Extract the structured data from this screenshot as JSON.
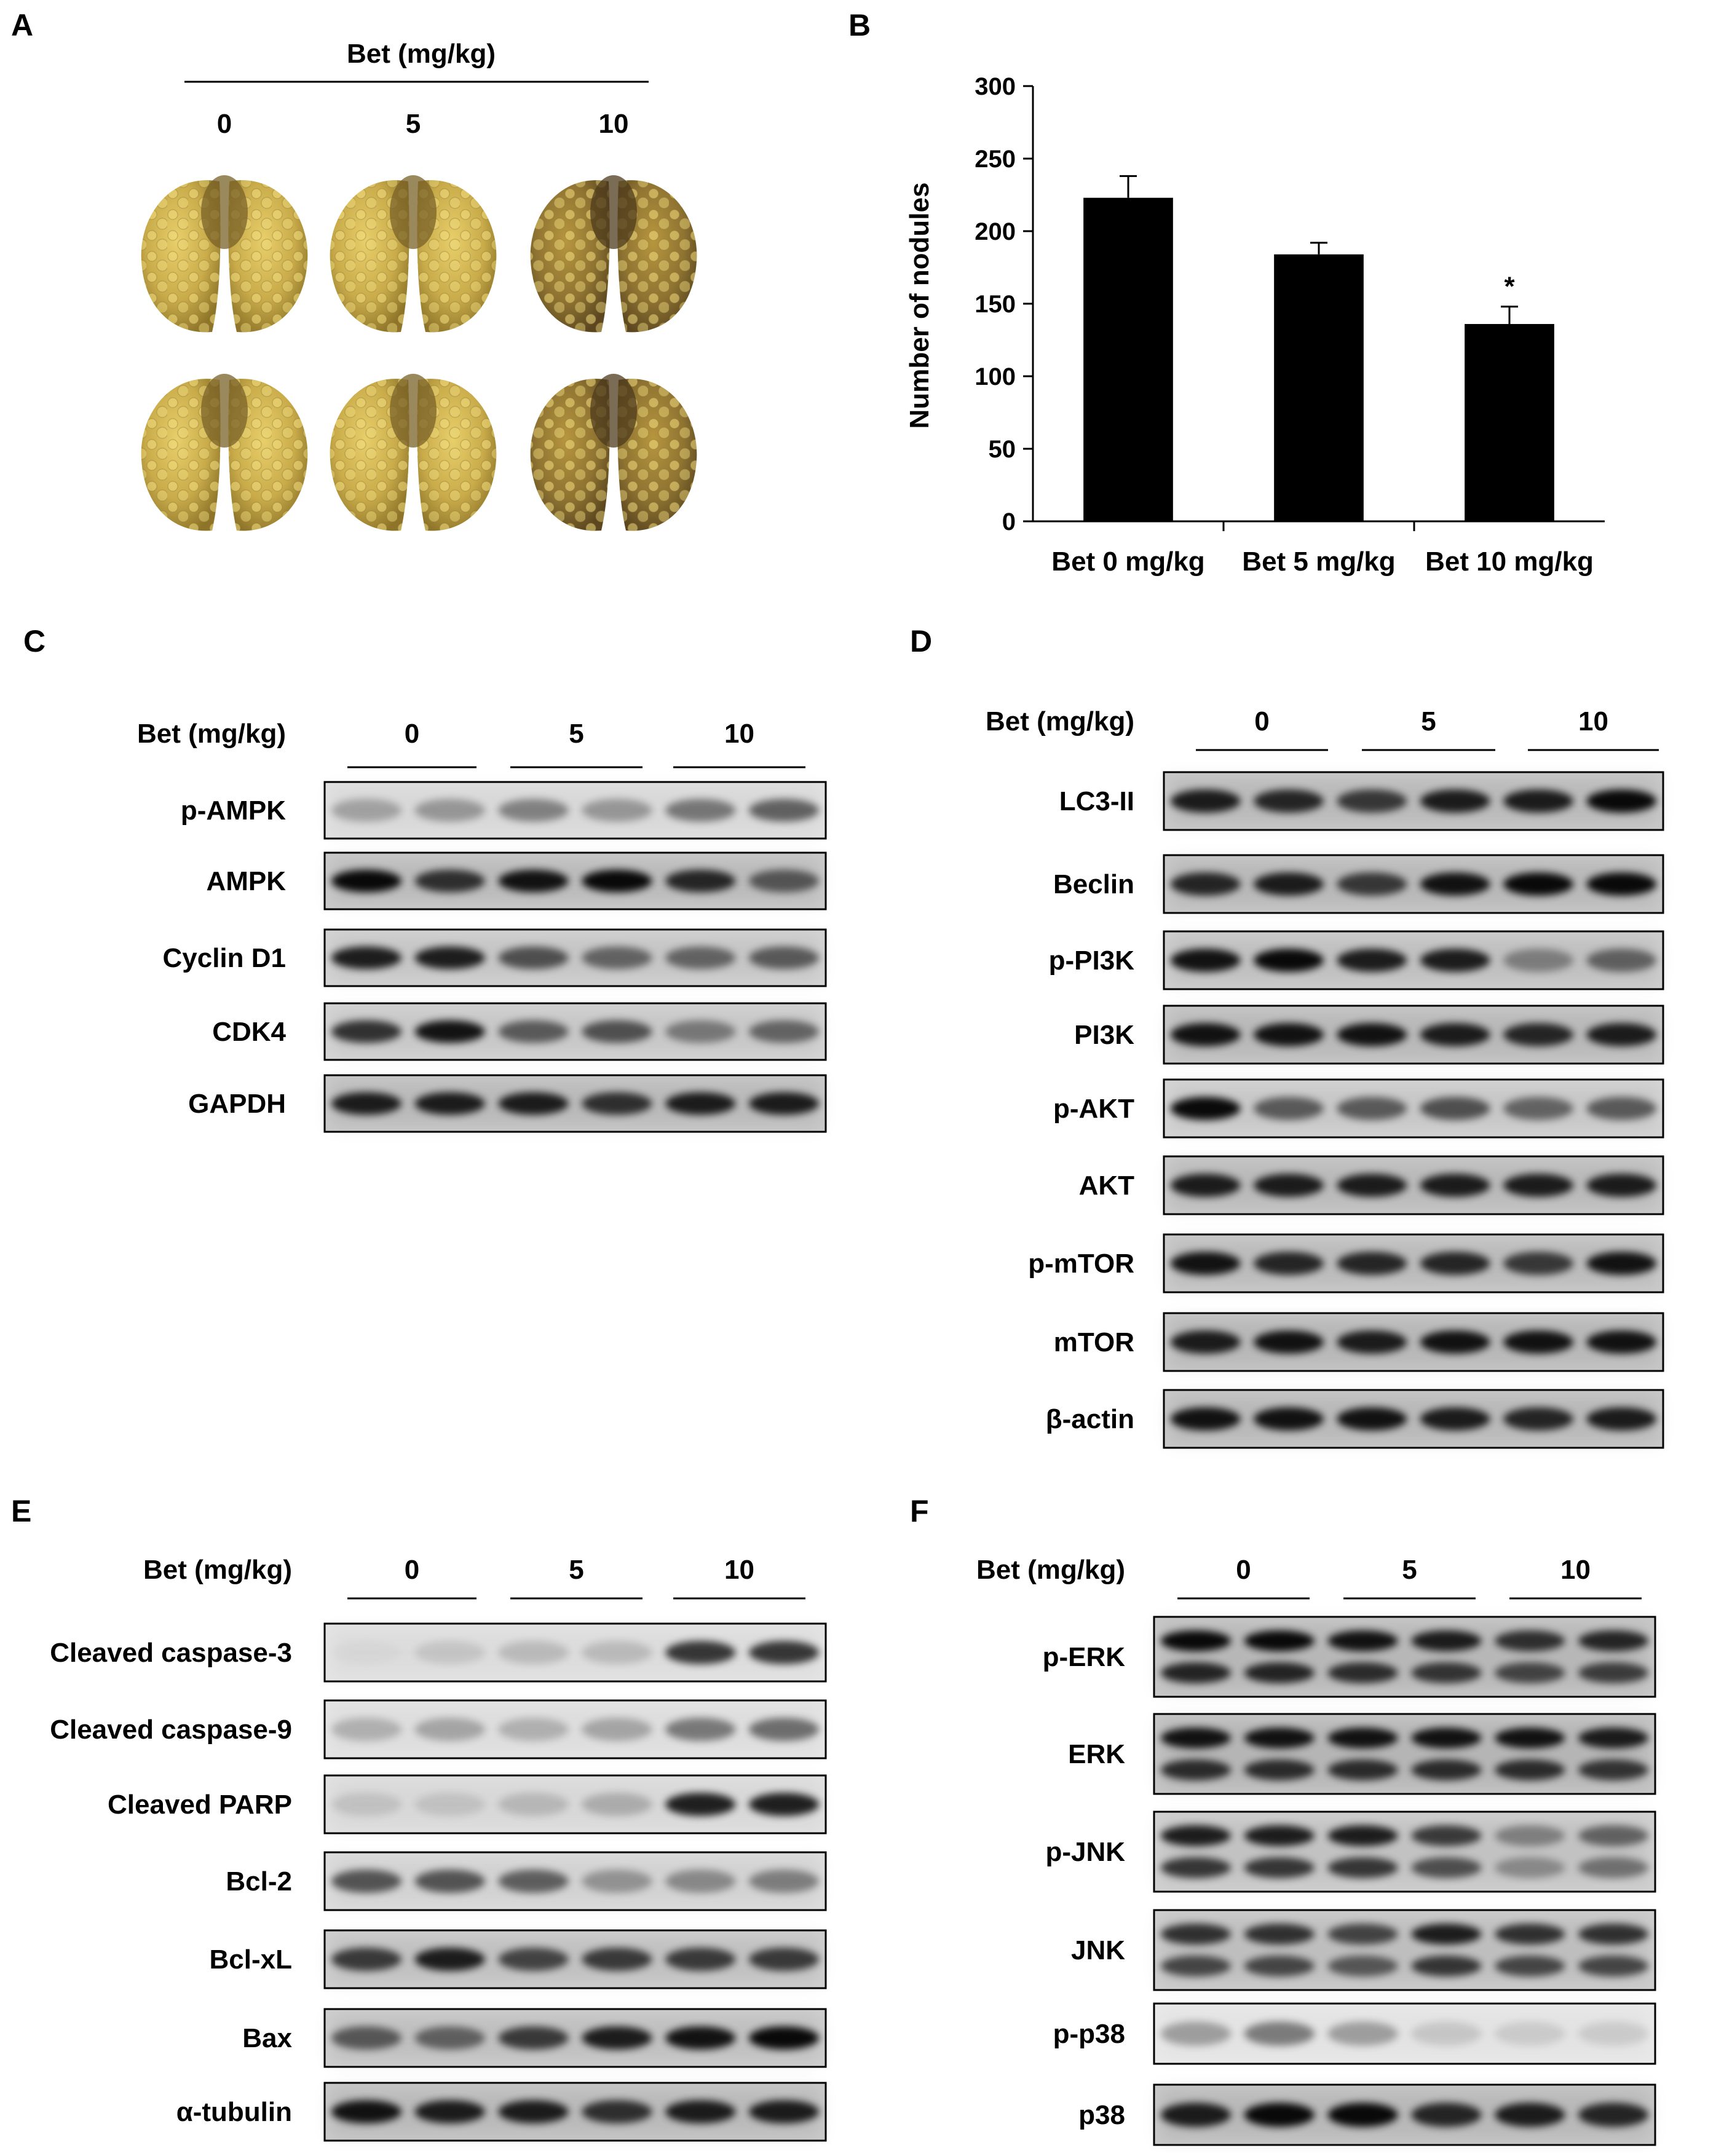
{
  "panels": {
    "A": {
      "letter": "A",
      "header": "Bet (mg/kg)",
      "doses": [
        "0",
        "5",
        "10"
      ],
      "lung_color": "#c9ab4a"
    },
    "B": {
      "letter": "B",
      "chart_data": {
        "type": "bar",
        "categories": [
          "Bet 0 mg/kg",
          "Bet 5 mg/kg",
          "Bet 10 mg/kg"
        ],
        "values": [
          223,
          184,
          136
        ],
        "errors": [
          15,
          8,
          12
        ],
        "significance": [
          "",
          "",
          "*"
        ],
        "ylabel": "Number of nodules",
        "ylim": [
          0,
          300
        ],
        "yticks": [
          "0",
          "50",
          "100",
          "150",
          "200",
          "250",
          "300"
        ],
        "bar_color": "#000000",
        "grid": false
      }
    },
    "C": {
      "letter": "C",
      "header": "Bet (mg/kg)",
      "doses": [
        "0",
        "5",
        "10"
      ],
      "blots": [
        {
          "label": "p-AMPK",
          "intensity": [
            0.25,
            0.3,
            0.4,
            0.3,
            0.45,
            0.55
          ]
        },
        {
          "label": "AMPK",
          "intensity": [
            0.95,
            0.75,
            0.9,
            0.95,
            0.8,
            0.55
          ]
        },
        {
          "label": "Cyclin D1",
          "intensity": [
            0.85,
            0.85,
            0.6,
            0.5,
            0.5,
            0.55
          ]
        },
        {
          "label": "CDK4",
          "intensity": [
            0.75,
            0.9,
            0.55,
            0.6,
            0.4,
            0.5
          ]
        },
        {
          "label": "GAPDH",
          "intensity": [
            0.85,
            0.85,
            0.85,
            0.75,
            0.85,
            0.85
          ]
        }
      ]
    },
    "D": {
      "letter": "D",
      "header": "Bet (mg/kg)",
      "doses": [
        "0",
        "5",
        "10"
      ],
      "blots": [
        {
          "label": "LC3-II",
          "intensity": [
            0.85,
            0.8,
            0.7,
            0.85,
            0.85,
            0.95
          ]
        },
        {
          "label": "Beclin",
          "intensity": [
            0.8,
            0.85,
            0.7,
            0.9,
            0.95,
            0.95
          ]
        },
        {
          "label": "p-PI3K",
          "intensity": [
            0.9,
            0.95,
            0.85,
            0.85,
            0.35,
            0.5
          ]
        },
        {
          "label": "PI3K",
          "intensity": [
            0.9,
            0.9,
            0.9,
            0.85,
            0.8,
            0.85
          ]
        },
        {
          "label": "p-AKT",
          "intensity": [
            0.95,
            0.55,
            0.55,
            0.6,
            0.5,
            0.55
          ]
        },
        {
          "label": "AKT",
          "intensity": [
            0.85,
            0.85,
            0.85,
            0.85,
            0.85,
            0.85
          ]
        },
        {
          "label": "p-mTOR",
          "intensity": [
            0.9,
            0.8,
            0.8,
            0.8,
            0.7,
            0.9
          ]
        },
        {
          "label": "mTOR",
          "intensity": [
            0.85,
            0.9,
            0.85,
            0.9,
            0.9,
            0.9
          ]
        },
        {
          "label": "β-actin",
          "intensity": [
            0.9,
            0.9,
            0.9,
            0.85,
            0.8,
            0.85
          ]
        }
      ]
    },
    "E": {
      "letter": "E",
      "header": "Bet (mg/kg)",
      "doses": [
        "0",
        "5",
        "10"
      ],
      "blots": [
        {
          "label": "Cleaved caspase-3",
          "intensity": [
            0.02,
            0.1,
            0.15,
            0.15,
            0.75,
            0.75
          ]
        },
        {
          "label": "Cleaved caspase-9",
          "intensity": [
            0.2,
            0.25,
            0.2,
            0.25,
            0.45,
            0.5
          ]
        },
        {
          "label": "Cleaved PARP",
          "intensity": [
            0.1,
            0.1,
            0.15,
            0.2,
            0.85,
            0.85
          ]
        },
        {
          "label": "Bcl-2",
          "intensity": [
            0.6,
            0.6,
            0.55,
            0.3,
            0.35,
            0.4
          ]
        },
        {
          "label": "Bcl-xL",
          "intensity": [
            0.7,
            0.85,
            0.65,
            0.7,
            0.7,
            0.7
          ]
        },
        {
          "label": "Bax",
          "intensity": [
            0.55,
            0.5,
            0.7,
            0.85,
            0.9,
            0.95
          ]
        },
        {
          "label": "α-tubulin",
          "intensity": [
            0.9,
            0.85,
            0.85,
            0.75,
            0.85,
            0.85
          ]
        }
      ]
    },
    "F": {
      "letter": "F",
      "header": "Bet (mg/kg)",
      "doses": [
        "0",
        "5",
        "10"
      ],
      "blots": [
        {
          "label": "p-ERK",
          "intensity": [
            0.95,
            0.95,
            0.9,
            0.85,
            0.75,
            0.8
          ]
        },
        {
          "label": "ERK",
          "intensity": [
            0.9,
            0.9,
            0.9,
            0.9,
            0.9,
            0.85
          ]
        },
        {
          "label": "p-JNK",
          "intensity": [
            0.85,
            0.85,
            0.85,
            0.7,
            0.35,
            0.5
          ]
        },
        {
          "label": "JNK",
          "intensity": [
            0.75,
            0.75,
            0.65,
            0.85,
            0.75,
            0.75
          ]
        },
        {
          "label": "p-p38",
          "intensity": [
            0.3,
            0.45,
            0.3,
            0.12,
            0.1,
            0.1
          ]
        },
        {
          "label": "p38",
          "intensity": [
            0.85,
            0.95,
            0.95,
            0.8,
            0.85,
            0.8
          ]
        }
      ]
    }
  }
}
